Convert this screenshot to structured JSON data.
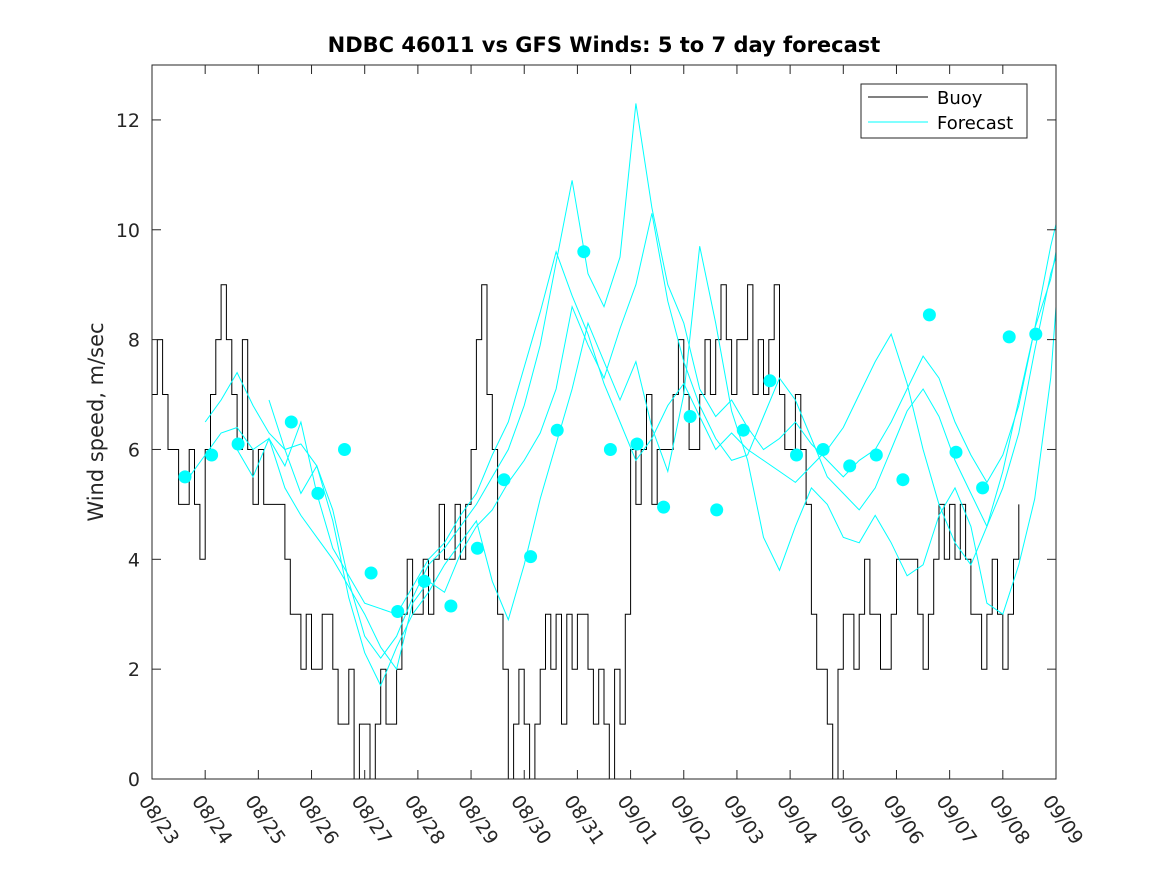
{
  "chart_data": {
    "type": "line",
    "title": "NDBC 46011 vs GFS Winds: 5 to 7 day forecast",
    "xlabel": "",
    "ylabel": "Wind speed, m/sec",
    "xlim": [
      0,
      17
    ],
    "ylim": [
      0,
      13
    ],
    "yticks": [
      0,
      2,
      4,
      6,
      8,
      10,
      12
    ],
    "xtick_labels": [
      "08/23",
      "08/24",
      "08/25",
      "08/26",
      "08/27",
      "08/28",
      "08/29",
      "08/30",
      "08/31",
      "09/01",
      "09/02",
      "09/03",
      "09/04",
      "09/05",
      "09/06",
      "09/07",
      "09/08",
      "09/09"
    ],
    "legend": {
      "position": "top-right",
      "entries": [
        "Buoy",
        "Forecast"
      ]
    },
    "colors": {
      "buoy": "#000000",
      "forecast": "#00ffff",
      "axis": "#262626"
    },
    "buoy": {
      "name": "Buoy",
      "x": [
        0,
        0.1,
        0.2,
        0.3,
        0.4,
        0.5,
        0.6,
        0.7,
        0.8,
        0.9,
        1.0,
        1.1,
        1.2,
        1.3,
        1.4,
        1.5,
        1.6,
        1.7,
        1.8,
        1.9,
        2.0,
        2.1,
        2.2,
        2.3,
        2.4,
        2.5,
        2.6,
        2.7,
        2.8,
        2.9,
        3.0,
        3.1,
        3.2,
        3.3,
        3.4,
        3.5,
        3.6,
        3.7,
        3.8,
        3.9,
        4.0,
        4.1,
        4.2,
        4.3,
        4.4,
        4.5,
        4.6,
        4.7,
        4.8,
        4.9,
        5.0,
        5.1,
        5.2,
        5.3,
        5.4,
        5.5,
        5.6,
        5.7,
        5.8,
        5.9,
        6.0,
        6.1,
        6.2,
        6.3,
        6.4,
        6.5,
        6.6,
        6.7,
        6.8,
        6.9,
        7.0,
        7.1,
        7.2,
        7.3,
        7.4,
        7.5,
        7.6,
        7.7,
        7.8,
        7.9,
        8.0,
        8.1,
        8.2,
        8.3,
        8.4,
        8.5,
        8.6,
        8.7,
        8.8,
        8.9,
        9.0,
        9.1,
        9.2,
        9.3,
        9.4,
        9.5,
        9.6,
        9.7,
        9.8,
        9.9,
        10.0,
        10.1,
        10.2,
        10.3,
        10.4,
        10.5,
        10.6,
        10.7,
        10.8,
        10.9,
        11.0,
        11.1,
        11.2,
        11.3,
        11.4,
        11.5,
        11.6,
        11.7,
        11.8,
        11.9,
        12.0,
        12.1,
        12.2,
        12.3,
        12.4,
        12.5,
        12.6,
        12.7,
        12.8,
        12.9,
        13.0,
        13.1,
        13.2,
        13.3,
        13.4,
        13.5,
        13.6,
        13.7,
        13.8,
        13.9,
        14.0,
        14.1,
        14.2,
        14.3,
        14.4,
        14.5,
        14.6,
        14.7,
        14.8,
        14.9,
        15.0,
        15.1,
        15.2,
        15.3,
        15.4,
        15.5,
        15.6,
        15.7,
        15.8,
        15.9,
        16.0,
        16.1,
        16.2,
        16.3
      ],
      "values": [
        7,
        8,
        7,
        6,
        6,
        5,
        5,
        6,
        5,
        4,
        6,
        7,
        8,
        9,
        8,
        7,
        6,
        8,
        6,
        5,
        6,
        5,
        5,
        5,
        5,
        4,
        3,
        3,
        2,
        3,
        2,
        2,
        3,
        3,
        2,
        1,
        1,
        2,
        0,
        1,
        1,
        0,
        1,
        2,
        1,
        1,
        2,
        3,
        4,
        3,
        3,
        4,
        3,
        4,
        5,
        4,
        4,
        5,
        4,
        5,
        6,
        8,
        9,
        7,
        6,
        3,
        2,
        0,
        1,
        2,
        1,
        0,
        1,
        2,
        3,
        2,
        3,
        1,
        3,
        2,
        3,
        3,
        2,
        1,
        2,
        1,
        0,
        2,
        1,
        3,
        6,
        5,
        6,
        7,
        5,
        6,
        6,
        6,
        7,
        8,
        7,
        6,
        6,
        7,
        8,
        7,
        8,
        9,
        8,
        7,
        8,
        8,
        9,
        7,
        8,
        7,
        8,
        9,
        7,
        6,
        6,
        7,
        6,
        5,
        3,
        2,
        2,
        1,
        0,
        2,
        3,
        3,
        2,
        3,
        4,
        3,
        3,
        2,
        2,
        3,
        4,
        4,
        4,
        4,
        3,
        2,
        3,
        4,
        5,
        4,
        5,
        4,
        5,
        4,
        3,
        3,
        2,
        3,
        4,
        3,
        2,
        3,
        4,
        5
      ]
    },
    "forecast": [
      {
        "name": "Forecast",
        "x": [
          0.7,
          1.0,
          1.3,
          1.6,
          1.9,
          2.2,
          2.5,
          2.8,
          3.1,
          3.4,
          3.7,
          4.0,
          4.3,
          4.6,
          4.9,
          5.2,
          5.5,
          5.8,
          6.1,
          6.4,
          6.7,
          7.0,
          7.3,
          7.6,
          7.9,
          8.2,
          8.5,
          8.8,
          9.1,
          9.4,
          9.7,
          10.0,
          10.3,
          10.6,
          10.9,
          11.2,
          11.5,
          11.8,
          12.1,
          12.4,
          12.7,
          13.0,
          13.3,
          13.6,
          13.9,
          14.2,
          14.5,
          14.8,
          15.1,
          15.4,
          15.7,
          16.0,
          16.3,
          16.6,
          16.9,
          17.0
        ],
        "values": [
          5.5,
          5.9,
          6.3,
          6.4,
          6.0,
          6.2,
          5.7,
          6.5,
          5.2,
          4.2,
          3.7,
          3.2,
          3.1,
          3.0,
          3.5,
          4.0,
          4.3,
          4.8,
          5.2,
          5.9,
          6.5,
          7.5,
          8.5,
          9.6,
          8.8,
          8.1,
          7.2,
          6.5,
          5.8,
          6.2,
          6.8,
          7.2,
          6.6,
          6.0,
          6.3,
          6.0,
          5.8,
          5.6,
          5.4,
          5.7,
          6.0,
          6.4,
          7.0,
          7.6,
          8.1,
          7.2,
          6.0,
          5.0,
          4.3,
          3.9,
          4.6,
          5.6,
          6.9,
          8.2,
          9.1,
          9.6
        ]
      },
      {
        "name": "Forecast",
        "x": [
          1.0,
          1.3,
          1.6,
          1.9,
          2.2,
          2.5,
          2.8,
          3.1,
          3.4,
          3.7,
          4.0,
          4.3,
          4.6,
          4.9,
          5.2,
          5.5,
          5.8,
          6.1,
          6.4,
          6.7,
          7.0,
          7.3,
          7.6,
          7.9,
          8.2,
          8.5,
          8.8,
          9.1,
          9.4,
          9.7,
          10.0,
          10.3,
          10.6,
          10.9,
          11.2,
          11.5,
          11.8,
          12.1,
          12.4,
          12.7,
          13.0,
          13.3,
          13.6,
          13.9,
          14.2,
          14.5,
          14.8,
          15.1,
          15.4,
          15.7,
          16.0,
          16.3,
          16.6,
          16.9,
          17.0
        ],
        "values": [
          6.5,
          6.9,
          7.4,
          6.8,
          6.3,
          6.0,
          6.1,
          5.7,
          4.9,
          3.6,
          2.6,
          2.2,
          2.6,
          3.3,
          3.9,
          4.2,
          4.6,
          5.0,
          5.5,
          6.0,
          6.8,
          7.9,
          9.4,
          10.9,
          9.2,
          8.6,
          9.5,
          12.3,
          10.4,
          9.0,
          8.3,
          7.1,
          6.6,
          6.9,
          6.4,
          6.0,
          6.2,
          6.5,
          6.1,
          5.8,
          5.5,
          5.8,
          6.0,
          6.5,
          7.1,
          7.7,
          7.3,
          6.5,
          5.9,
          5.4,
          5.9,
          6.8,
          8.2,
          9.7,
          10.1
        ]
      },
      {
        "name": "Forecast",
        "x": [
          1.6,
          1.9,
          2.2,
          2.5,
          2.8,
          3.1,
          3.4,
          3.7,
          4.0,
          4.3,
          4.6,
          4.9,
          5.2,
          5.5,
          5.8,
          6.1,
          6.4,
          6.7,
          7.0,
          7.3,
          7.6,
          7.9,
          8.2,
          8.5,
          8.8,
          9.1,
          9.4,
          9.7,
          10.0,
          10.3,
          10.6,
          10.9,
          11.2,
          11.5,
          11.8,
          12.1,
          12.4,
          12.7,
          13.0,
          13.3,
          13.6,
          13.9,
          14.2,
          14.5,
          14.8,
          15.1,
          15.4,
          15.7,
          16.0,
          16.3,
          16.6,
          16.9,
          17.0
        ],
        "values": [
          6.0,
          5.5,
          6.2,
          5.3,
          4.8,
          4.4,
          4.0,
          3.5,
          3.0,
          2.4,
          2.0,
          3.2,
          3.6,
          3.4,
          4.1,
          4.6,
          4.9,
          5.4,
          5.8,
          6.3,
          7.1,
          8.6,
          7.9,
          7.3,
          8.2,
          9.0,
          10.3,
          8.7,
          7.6,
          6.8,
          6.2,
          5.8,
          5.9,
          6.6,
          7.3,
          6.9,
          6.2,
          5.5,
          5.2,
          4.9,
          5.3,
          6.0,
          6.7,
          7.1,
          6.6,
          5.8,
          5.2,
          4.6,
          5.3,
          6.3,
          7.8,
          9.2,
          9.5
        ]
      },
      {
        "name": "Forecast",
        "x": [
          2.2,
          2.5,
          2.8,
          3.1,
          3.4,
          3.7,
          4.0,
          4.3,
          4.6,
          4.9,
          5.2,
          5.5,
          5.8,
          6.1,
          6.4,
          6.7,
          7.0,
          7.3,
          7.6,
          7.9,
          8.2,
          8.5,
          8.8,
          9.1,
          9.4,
          9.7,
          10.0,
          10.3,
          10.6,
          10.9,
          11.2,
          11.5,
          11.8,
          12.1,
          12.4,
          12.7,
          13.0,
          13.3,
          13.6,
          13.9,
          14.2,
          14.5,
          14.8,
          15.1,
          15.4,
          15.7,
          16.0,
          16.3,
          16.6,
          16.9,
          17.0
        ],
        "values": [
          6.9,
          6.0,
          5.2,
          5.7,
          4.7,
          3.3,
          2.3,
          1.7,
          2.4,
          3.0,
          3.4,
          3.9,
          4.3,
          4.7,
          3.6,
          2.9,
          3.9,
          5.1,
          6.1,
          7.1,
          8.3,
          7.6,
          6.9,
          7.6,
          6.4,
          5.6,
          7.0,
          9.7,
          8.3,
          6.7,
          5.8,
          4.4,
          3.8,
          4.6,
          5.3,
          5.0,
          4.4,
          4.3,
          4.8,
          4.3,
          3.7,
          3.9,
          4.8,
          5.3,
          4.6,
          3.2,
          3.0,
          3.9,
          5.1,
          7.3,
          8.6
        ]
      }
    ],
    "markers": {
      "x": [
        0.62,
        1.12,
        1.62,
        2.62,
        3.12,
        3.62,
        4.12,
        4.62,
        5.12,
        5.62,
        6.12,
        6.62,
        7.12,
        7.62,
        8.12,
        8.62,
        9.12,
        9.62,
        10.12,
        10.62,
        11.12,
        11.62,
        12.12,
        12.62,
        13.12,
        13.62,
        14.12,
        14.62,
        15.12,
        15.62,
        16.12,
        16.62
      ],
      "values": [
        5.5,
        5.9,
        6.1,
        6.5,
        5.2,
        6.0,
        3.75,
        3.05,
        3.6,
        3.15,
        4.2,
        5.45,
        4.05,
        6.35,
        9.6,
        6.0,
        6.1,
        4.95,
        6.6,
        4.9,
        6.35,
        7.25,
        5.9,
        6.0,
        5.7,
        5.9,
        5.45,
        8.45,
        5.95,
        5.3,
        8.05,
        8.1
      ]
    }
  }
}
